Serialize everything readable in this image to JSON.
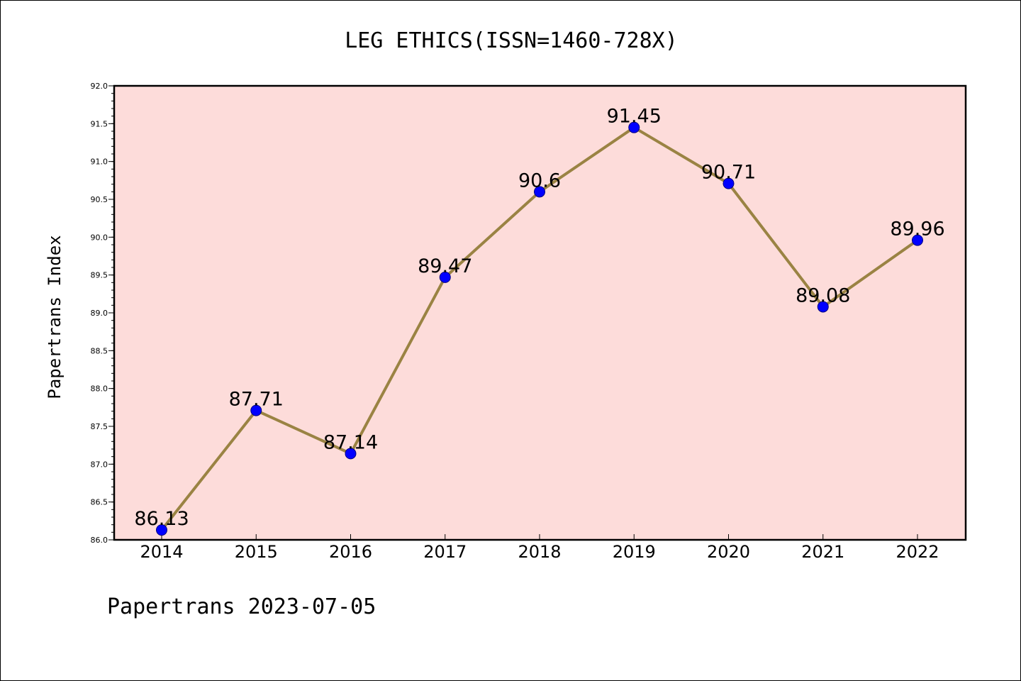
{
  "chart_data": {
    "type": "line",
    "title": "LEG ETHICS(ISSN=1460-728X)",
    "xlabel": "",
    "ylabel": "Papertrans Index",
    "footer": "Papertrans 2023-07-05",
    "x": [
      "2014",
      "2015",
      "2016",
      "2017",
      "2018",
      "2019",
      "2020",
      "2021",
      "2022"
    ],
    "series": [
      {
        "values": [
          86.13,
          87.71,
          87.14,
          89.47,
          90.6,
          91.45,
          90.71,
          89.08,
          89.96
        ],
        "data_labels": [
          "86.13",
          "87.71",
          "87.14",
          "89.47",
          "90.6",
          "91.45",
          "90.71",
          "89.08",
          "89.96"
        ]
      }
    ],
    "ylim": [
      86.0,
      92.0
    ],
    "yticks": [
      "86.0",
      "86.5",
      "87.0",
      "87.5",
      "88.0",
      "88.5",
      "89.0",
      "89.5",
      "90.0",
      "90.5",
      "91.0",
      "91.5",
      "92.0"
    ],
    "grid": false,
    "legend": "none",
    "colors": {
      "plot_background": "#fddcda",
      "line": "#9a8343",
      "marker": "#0000ff",
      "marker_edge": "#000080",
      "axes": "#000000"
    }
  }
}
